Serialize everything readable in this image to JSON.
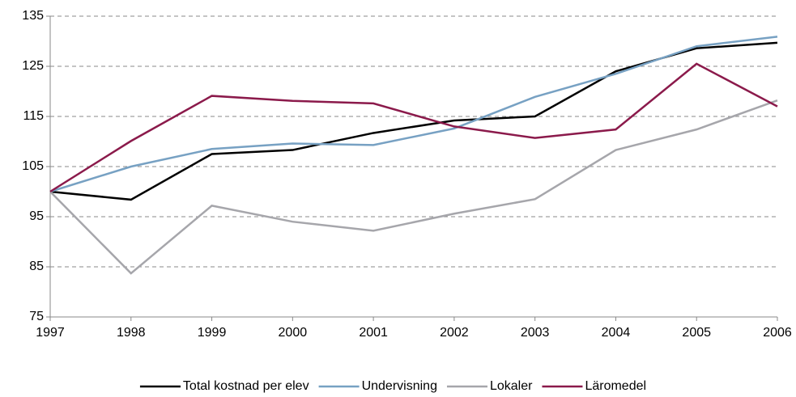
{
  "chart_data": {
    "type": "line",
    "x": [
      1997,
      1998,
      1999,
      2000,
      2001,
      2002,
      2003,
      2004,
      2005,
      2006
    ],
    "series": [
      {
        "name": "Total kostnad per elev",
        "color": "#000000",
        "values": [
          100,
          98.4,
          107.5,
          108.3,
          111.7,
          114.2,
          115,
          124,
          128.6,
          129.7
        ]
      },
      {
        "name": "Undervisning",
        "color": "#77a1c3",
        "values": [
          100,
          105,
          108.5,
          109.6,
          109.3,
          112.6,
          118.9,
          123.5,
          129,
          130.9
        ]
      },
      {
        "name": "Lokaler",
        "color": "#a6a6ab",
        "values": [
          100,
          83.7,
          97.2,
          94,
          92.2,
          95.6,
          98.5,
          108.3,
          112.4,
          118.2
        ]
      },
      {
        "name": "Läromedel",
        "color": "#8b1a4b",
        "values": [
          100,
          110.1,
          119.1,
          118.1,
          117.6,
          113,
          110.7,
          112.4,
          125.5,
          117
        ]
      }
    ],
    "xlim": [
      1997,
      2006
    ],
    "xticks": [
      1997,
      1998,
      1999,
      2000,
      2001,
      2002,
      2003,
      2004,
      2005,
      2006
    ],
    "ylim": [
      75,
      135
    ],
    "yticks": [
      75,
      85,
      95,
      105,
      115,
      125,
      135
    ],
    "grid": true,
    "legend": "bottom"
  }
}
